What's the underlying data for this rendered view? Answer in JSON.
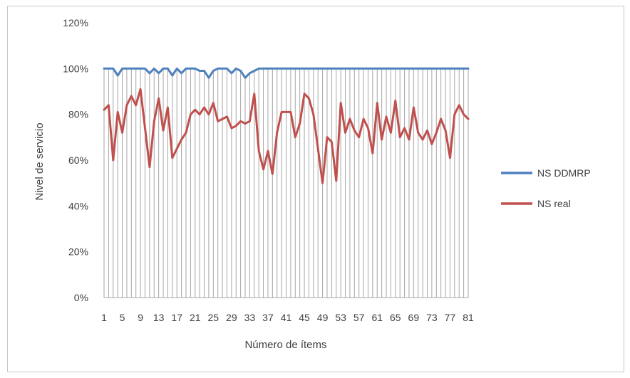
{
  "chart_data": {
    "type": "line",
    "title": "",
    "xlabel": "Número  de ítems",
    "ylabel": "Nivel de servicio",
    "ylim": [
      0,
      1.2
    ],
    "yticks": [
      "0%",
      "20%",
      "40%",
      "60%",
      "80%",
      "100%",
      "120%"
    ],
    "x": [
      1,
      2,
      3,
      4,
      5,
      6,
      7,
      8,
      9,
      10,
      11,
      12,
      13,
      14,
      15,
      16,
      17,
      18,
      19,
      20,
      21,
      22,
      23,
      24,
      25,
      26,
      27,
      28,
      29,
      30,
      31,
      32,
      33,
      34,
      35,
      36,
      37,
      38,
      39,
      40,
      41,
      42,
      43,
      44,
      45,
      46,
      47,
      48,
      49,
      50,
      51,
      52,
      53,
      54,
      55,
      56,
      57,
      58,
      59,
      60,
      61,
      62,
      63,
      64,
      65,
      66,
      67,
      68,
      69,
      70,
      71,
      72,
      73,
      74,
      75,
      76,
      77,
      78,
      79,
      80,
      81
    ],
    "xtick_labels": [
      "1",
      "5",
      "9",
      "13",
      "17",
      "21",
      "25",
      "29",
      "33",
      "37",
      "41",
      "45",
      "49",
      "53",
      "57",
      "61",
      "65",
      "69",
      "73",
      "77",
      "81"
    ],
    "grid": "vertical lines at each item",
    "legend_position": "right",
    "series": [
      {
        "name": "NS DDMRP",
        "color": "#4f81bd",
        "values": [
          1.0,
          1.0,
          1.0,
          0.97,
          1.0,
          1.0,
          1.0,
          1.0,
          1.0,
          1.0,
          0.98,
          1.0,
          0.98,
          1.0,
          1.0,
          0.97,
          1.0,
          0.98,
          1.0,
          1.0,
          1.0,
          0.99,
          0.99,
          0.96,
          0.99,
          1.0,
          1.0,
          1.0,
          0.98,
          1.0,
          0.99,
          0.96,
          0.98,
          0.99,
          1.0,
          1.0,
          1.0,
          1.0,
          1.0,
          1.0,
          1.0,
          1.0,
          1.0,
          1.0,
          1.0,
          1.0,
          1.0,
          1.0,
          1.0,
          1.0,
          1.0,
          1.0,
          1.0,
          1.0,
          1.0,
          1.0,
          1.0,
          1.0,
          1.0,
          1.0,
          1.0,
          1.0,
          1.0,
          1.0,
          1.0,
          1.0,
          1.0,
          1.0,
          1.0,
          1.0,
          1.0,
          1.0,
          1.0,
          1.0,
          1.0,
          1.0,
          1.0,
          1.0,
          1.0,
          1.0,
          1.0
        ]
      },
      {
        "name": "NS real",
        "color": "#c0504d",
        "values": [
          0.82,
          0.84,
          0.6,
          0.81,
          0.72,
          0.84,
          0.88,
          0.84,
          0.91,
          0.74,
          0.57,
          0.77,
          0.87,
          0.73,
          0.83,
          0.61,
          0.65,
          0.69,
          0.72,
          0.8,
          0.82,
          0.8,
          0.83,
          0.8,
          0.85,
          0.77,
          0.78,
          0.79,
          0.74,
          0.75,
          0.77,
          0.76,
          0.77,
          0.89,
          0.64,
          0.56,
          0.64,
          0.54,
          0.72,
          0.81,
          0.81,
          0.81,
          0.7,
          0.76,
          0.89,
          0.87,
          0.8,
          0.65,
          0.5,
          0.7,
          0.68,
          0.51,
          0.85,
          0.72,
          0.78,
          0.73,
          0.7,
          0.78,
          0.74,
          0.63,
          0.85,
          0.69,
          0.79,
          0.72,
          0.86,
          0.7,
          0.74,
          0.69,
          0.83,
          0.72,
          0.69,
          0.73,
          0.67,
          0.72,
          0.78,
          0.73,
          0.61,
          0.8,
          0.84,
          0.8,
          0.78
        ]
      }
    ]
  }
}
